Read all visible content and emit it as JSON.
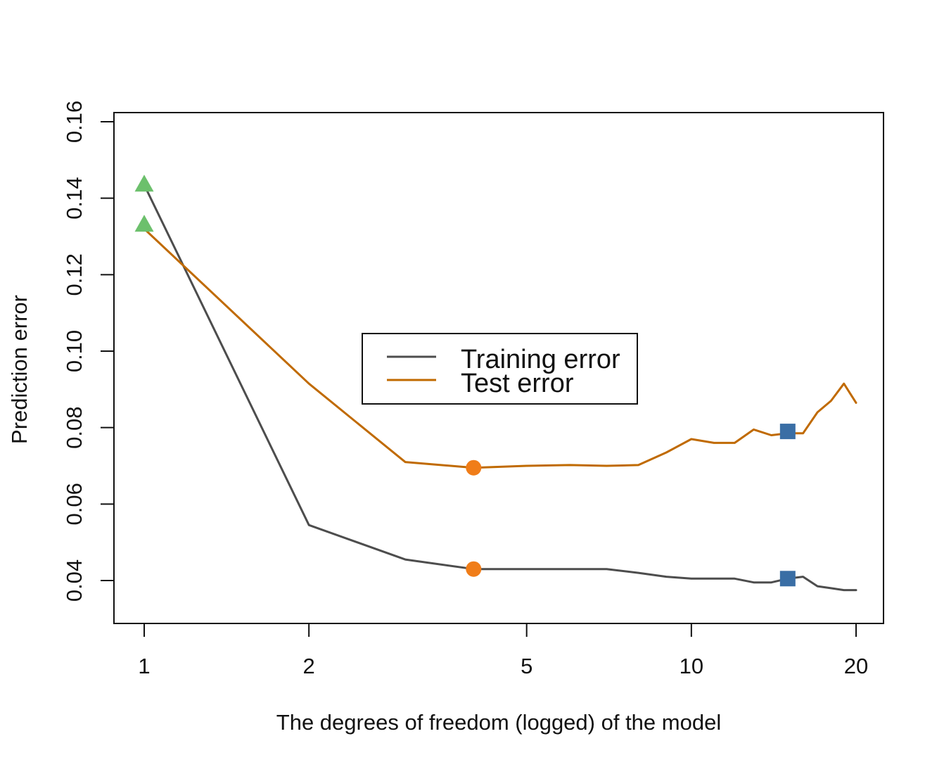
{
  "chart_data": {
    "type": "line",
    "title": "",
    "xlabel": "The degrees of freedom (logged) of the model",
    "ylabel": "Prediction error",
    "x_scale": "log",
    "xlim": [
      1,
      20
    ],
    "ylim": [
      0.04,
      0.16
    ],
    "x_ticks": [
      {
        "value": 1,
        "label": "1"
      },
      {
        "value": 2,
        "label": "2"
      },
      {
        "value": 5,
        "label": "5"
      },
      {
        "value": 10,
        "label": "10"
      },
      {
        "value": 20,
        "label": "20"
      }
    ],
    "y_ticks": [
      {
        "value": 0.04,
        "label": "0.04"
      },
      {
        "value": 0.06,
        "label": "0.06"
      },
      {
        "value": 0.08,
        "label": "0.08"
      },
      {
        "value": 0.1,
        "label": "0.10"
      },
      {
        "value": 0.12,
        "label": "0.12"
      },
      {
        "value": 0.14,
        "label": "0.14"
      },
      {
        "value": 0.16,
        "label": "0.16"
      }
    ],
    "grid": false,
    "legend": {
      "placement": "center",
      "entries": [
        "Training error",
        "Test error"
      ]
    },
    "series": [
      {
        "name": "Training error",
        "color": "#4d4d4d",
        "x": [
          1,
          2,
          3,
          4,
          5,
          6,
          7,
          8,
          9,
          10,
          11,
          12,
          13,
          14,
          15,
          16,
          17,
          18,
          19,
          20
        ],
        "y": [
          0.1435,
          0.0545,
          0.0455,
          0.043,
          0.043,
          0.043,
          0.043,
          0.042,
          0.041,
          0.0405,
          0.0405,
          0.0405,
          0.0395,
          0.0395,
          0.0405,
          0.041,
          0.0385,
          0.038,
          0.0375,
          0.0375
        ]
      },
      {
        "name": "Test error",
        "color": "#c06a00",
        "x": [
          1,
          2,
          3,
          4,
          5,
          6,
          7,
          8,
          9,
          10,
          11,
          12,
          13,
          14,
          15,
          16,
          17,
          18,
          19,
          20
        ],
        "y": [
          0.132,
          0.0915,
          0.071,
          0.0695,
          0.07,
          0.0702,
          0.07,
          0.0702,
          0.0735,
          0.077,
          0.076,
          0.076,
          0.0795,
          0.078,
          0.0785,
          0.0785,
          0.084,
          0.087,
          0.0915,
          0.0865
        ]
      }
    ],
    "markers": [
      {
        "series": "Training error",
        "x": 1,
        "y": 0.1435,
        "shape": "triangle",
        "color": "#6cc06c"
      },
      {
        "series": "Test error",
        "x": 1,
        "y": 0.133,
        "shape": "triangle",
        "color": "#6cc06c"
      },
      {
        "series": "Training error",
        "x": 4,
        "y": 0.043,
        "shape": "circle",
        "color": "#f07d19"
      },
      {
        "series": "Test error",
        "x": 4,
        "y": 0.0695,
        "shape": "circle",
        "color": "#f07d19"
      },
      {
        "series": "Training error",
        "x": 15,
        "y": 0.0405,
        "shape": "square",
        "color": "#3a6ea5"
      },
      {
        "series": "Test error",
        "x": 15,
        "y": 0.079,
        "shape": "square",
        "color": "#3a6ea5"
      }
    ]
  }
}
